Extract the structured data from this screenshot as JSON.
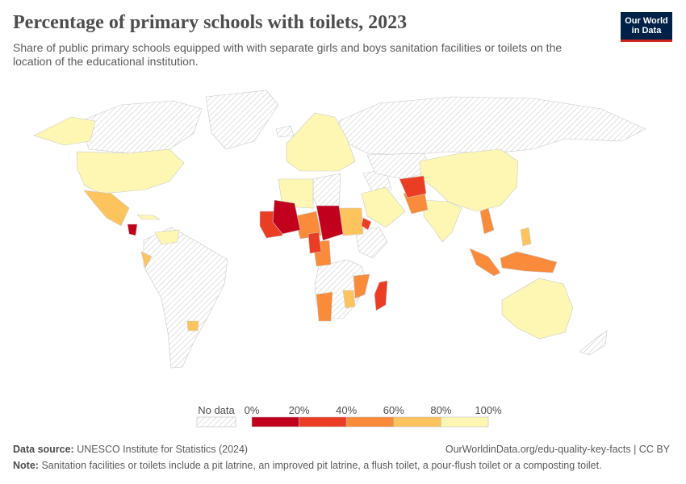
{
  "header": {
    "title": "Percentage of primary schools with toilets, 2023",
    "subtitle": "Share of public primary schools equipped with with separate girls and boys sanitation facilities or toilets on the location of the educational institution."
  },
  "logo": {
    "line1": "Our World",
    "line2": "in Data"
  },
  "legend": {
    "no_data_label": "No data",
    "ticks": [
      "0%",
      "20%",
      "40%",
      "60%",
      "80%",
      "100%"
    ],
    "bins": [
      {
        "from": 0,
        "to": 20,
        "color": "#c1001e"
      },
      {
        "from": 20,
        "to": 40,
        "color": "#ea3d23"
      },
      {
        "from": 40,
        "to": 60,
        "color": "#f98b3b"
      },
      {
        "from": 60,
        "to": 80,
        "color": "#fdc45e"
      },
      {
        "from": 80,
        "to": 100,
        "color": "#fef7b3"
      }
    ]
  },
  "colors": {
    "no_data": "#e0e0e0",
    "border": "#ffffff"
  },
  "footer": {
    "source_label": "Data source:",
    "source_text": "UNESCO Institute for Statistics (2024)",
    "url": "OurWorldinData.org/edu-quality-key-facts | CC BY",
    "note_label": "Note:",
    "note_text": "Sanitation facilities or toilets include a pit latrine, an improved pit latrine, a flush toilet, a pour-flush toilet or a composting toilet."
  }
}
